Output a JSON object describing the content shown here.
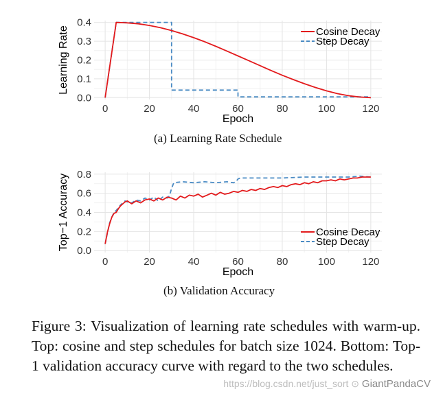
{
  "chart_data": [
    {
      "type": "line",
      "title": "",
      "xlabel": "Epoch",
      "ylabel": "Learning Rate",
      "xlim": [
        -5,
        125
      ],
      "ylim": [
        -0.01,
        0.41
      ],
      "xticks": [
        "0",
        "20",
        "40",
        "60",
        "80",
        "100",
        "120"
      ],
      "yticks": [
        "0.0",
        "0.1",
        "0.2",
        "0.3",
        "0.4"
      ],
      "legend_position": "top-right",
      "grid": true,
      "series": [
        {
          "name": "Cosine Decay",
          "style": "solid",
          "color": "#e31a1c",
          "x": [
            0,
            5,
            10,
            15,
            20,
            25,
            30,
            35,
            40,
            45,
            50,
            55,
            60,
            65,
            70,
            75,
            80,
            85,
            90,
            95,
            100,
            105,
            110,
            115,
            120
          ],
          "y": [
            0,
            0.4,
            0.398,
            0.393,
            0.384,
            0.372,
            0.357,
            0.339,
            0.319,
            0.297,
            0.273,
            0.248,
            0.222,
            0.196,
            0.17,
            0.144,
            0.119,
            0.096,
            0.074,
            0.054,
            0.036,
            0.021,
            0.01,
            0.003,
            0
          ]
        },
        {
          "name": "Step Decay",
          "style": "dashed",
          "color": "#4a8bc4",
          "x": [
            0,
            5,
            30,
            30,
            60,
            60,
            120
          ],
          "y": [
            0,
            0.4,
            0.4,
            0.04,
            0.04,
            0.004,
            0.004
          ]
        }
      ]
    },
    {
      "type": "line",
      "title": "",
      "xlabel": "Epoch",
      "ylabel": "Top−1 Accuracy",
      "xlim": [
        -5,
        125
      ],
      "ylim": [
        -0.02,
        0.82
      ],
      "xticks": [
        "0",
        "20",
        "40",
        "60",
        "80",
        "100",
        "120"
      ],
      "yticks": [
        "0.0",
        "0.2",
        "0.4",
        "0.6",
        "0.8"
      ],
      "legend_position": "bottom-right",
      "grid": true,
      "series": [
        {
          "name": "Cosine Decay",
          "style": "solid",
          "color": "#e31a1c",
          "x": [
            0,
            1,
            2,
            3,
            4,
            5,
            6,
            7,
            8,
            9,
            10,
            12,
            14,
            16,
            18,
            20,
            22,
            24,
            26,
            28,
            30,
            32,
            34,
            36,
            38,
            40,
            42,
            44,
            46,
            48,
            50,
            52,
            54,
            56,
            58,
            60,
            62,
            64,
            66,
            68,
            70,
            72,
            74,
            76,
            78,
            80,
            82,
            84,
            86,
            88,
            90,
            92,
            94,
            96,
            98,
            100,
            102,
            104,
            106,
            108,
            110,
            112,
            114,
            116,
            118,
            120
          ],
          "y": [
            0.07,
            0.19,
            0.28,
            0.35,
            0.39,
            0.4,
            0.44,
            0.47,
            0.49,
            0.51,
            0.52,
            0.49,
            0.52,
            0.5,
            0.53,
            0.54,
            0.52,
            0.55,
            0.53,
            0.56,
            0.55,
            0.53,
            0.57,
            0.55,
            0.58,
            0.57,
            0.59,
            0.56,
            0.58,
            0.6,
            0.58,
            0.61,
            0.59,
            0.6,
            0.62,
            0.61,
            0.63,
            0.62,
            0.64,
            0.63,
            0.65,
            0.64,
            0.66,
            0.67,
            0.66,
            0.68,
            0.67,
            0.69,
            0.7,
            0.69,
            0.71,
            0.7,
            0.72,
            0.71,
            0.73,
            0.73,
            0.74,
            0.73,
            0.75,
            0.74,
            0.75,
            0.76,
            0.76,
            0.77,
            0.77,
            0.77
          ]
        },
        {
          "name": "Step Decay",
          "style": "dashed",
          "color": "#4a8bc4",
          "x": [
            0,
            1,
            2,
            3,
            4,
            5,
            6,
            7,
            8,
            9,
            10,
            12,
            14,
            16,
            18,
            20,
            22,
            24,
            26,
            28,
            29,
            30,
            31,
            35,
            40,
            45,
            50,
            55,
            58,
            59,
            60,
            61,
            65,
            70,
            80,
            90,
            100,
            110,
            115,
            120
          ],
          "y": [
            0.07,
            0.18,
            0.29,
            0.35,
            0.4,
            0.42,
            0.45,
            0.48,
            0.5,
            0.52,
            0.51,
            0.5,
            0.53,
            0.52,
            0.55,
            0.53,
            0.56,
            0.52,
            0.56,
            0.55,
            0.57,
            0.65,
            0.71,
            0.72,
            0.71,
            0.72,
            0.71,
            0.72,
            0.71,
            0.72,
            0.75,
            0.76,
            0.76,
            0.76,
            0.76,
            0.77,
            0.77,
            0.77,
            0.78,
            0.77
          ]
        }
      ]
    }
  ],
  "subcaptions": {
    "a": "(a) Learning Rate Schedule",
    "b": "(b) Validation Accuracy"
  },
  "caption": "Figure 3:  Visualization of learning rate schedules with warm-up.  Top: cosine and step schedules for batch size 1024. Bottom: Top-1 validation accuracy curve with regard to the two schedules.",
  "watermark": {
    "url": "https://blog.csdn.net/just_sort",
    "brand": "GiantPandaCV"
  }
}
